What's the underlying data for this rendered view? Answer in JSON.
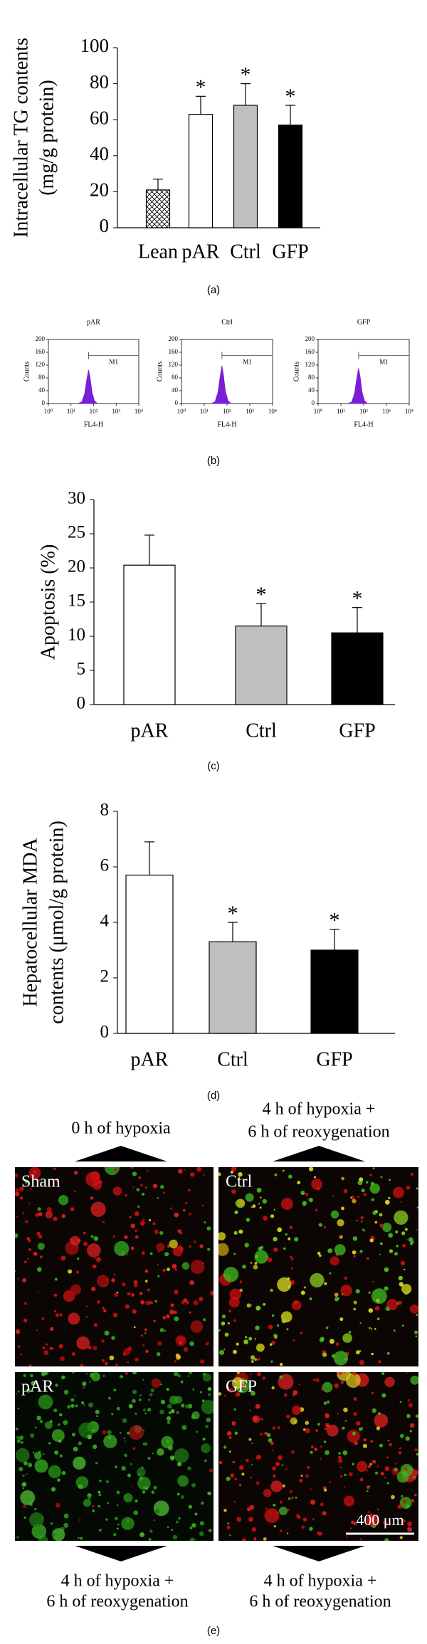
{
  "chart_data": [
    {
      "type": "bar",
      "ylabel": [
        "Intracellular TG contents",
        "(mg/g protein)"
      ],
      "categories": [
        "Lean",
        "pAR",
        "Ctrl",
        "GFP"
      ],
      "values": [
        21,
        63,
        68,
        57
      ],
      "errors": [
        6,
        10,
        12,
        11
      ],
      "colors": [
        "#ffffff",
        "#ffffff",
        "#bfbfbf",
        "#000000"
      ],
      "hatched": [
        true,
        false,
        false,
        false
      ],
      "annotations": [
        {
          "category_index": 1,
          "text": "*"
        },
        {
          "category_index": 2,
          "text": "*"
        },
        {
          "category_index": 3,
          "text": "*"
        }
      ],
      "ylim": [
        0,
        100
      ],
      "yticks": [
        0,
        20,
        40,
        60,
        80,
        100
      ],
      "caption": "(a)"
    },
    {
      "type": "flow",
      "title": "pAR",
      "xlabel": "FL4-H",
      "ylabel": "Counts",
      "color": "#7a1fd6",
      "log_x": true,
      "x": [
        20,
        30,
        40,
        50,
        60,
        70,
        85,
        110,
        150
      ],
      "values": [
        0,
        5,
        30,
        75,
        105,
        80,
        35,
        8,
        0
      ],
      "marker": {
        "label": "M1",
        "range": [
          60,
          10000
        ],
        "level": 150
      },
      "xlim": [
        1,
        10000
      ],
      "xticks": [
        {
          "value": 1,
          "label": "10⁰"
        },
        {
          "value": 10,
          "label": "10¹"
        },
        {
          "value": 100,
          "label": "10²"
        },
        {
          "value": 1000,
          "label": "10³"
        },
        {
          "value": 10000,
          "label": "10⁴"
        }
      ],
      "ylim": [
        0,
        200
      ],
      "yticks": [
        0,
        40,
        80,
        120,
        160,
        200
      ]
    },
    {
      "type": "flow",
      "title": "Ctrl",
      "xlabel": "FL4-H",
      "ylabel": "Counts",
      "color": "#7a1fd6",
      "log_x": true,
      "x": [
        20,
        30,
        40,
        50,
        60,
        70,
        85,
        110,
        150
      ],
      "values": [
        0,
        6,
        35,
        85,
        118,
        88,
        38,
        9,
        0
      ],
      "marker": {
        "label": "M1",
        "range": [
          60,
          10000
        ],
        "level": 150
      },
      "xlim": [
        1,
        10000
      ],
      "xticks": [
        {
          "value": 1,
          "label": "10⁰"
        },
        {
          "value": 10,
          "label": "10¹"
        },
        {
          "value": 100,
          "label": "10²"
        },
        {
          "value": 1000,
          "label": "10³"
        },
        {
          "value": 10000,
          "label": "10⁴"
        }
      ],
      "ylim": [
        0,
        200
      ],
      "yticks": [
        0,
        40,
        80,
        120,
        160,
        200
      ]
    },
    {
      "type": "flow",
      "title": "GFP",
      "xlabel": "FL4-H",
      "ylabel": "Counts",
      "color": "#7a1fd6",
      "log_x": true,
      "x": [
        20,
        30,
        40,
        50,
        60,
        70,
        85,
        110,
        150
      ],
      "values": [
        0,
        5,
        32,
        80,
        110,
        84,
        36,
        8,
        0
      ],
      "marker": {
        "label": "M1",
        "range": [
          60,
          10000
        ],
        "level": 150
      },
      "xlim": [
        1,
        10000
      ],
      "xticks": [
        {
          "value": 1,
          "label": "10⁰"
        },
        {
          "value": 10,
          "label": "10¹"
        },
        {
          "value": 100,
          "label": "10²"
        },
        {
          "value": 1000,
          "label": "10³"
        },
        {
          "value": 10000,
          "label": "10⁴"
        }
      ],
      "ylim": [
        0,
        200
      ],
      "yticks": [
        0,
        40,
        80,
        120,
        160,
        200
      ],
      "caption": "(b)"
    },
    {
      "type": "bar",
      "ylabel": [
        "Apoptosis (%)"
      ],
      "categories": [
        "pAR",
        "Ctrl",
        "GFP"
      ],
      "values": [
        20.4,
        11.5,
        10.5
      ],
      "errors": [
        4.4,
        3.3,
        3.7
      ],
      "colors": [
        "#ffffff",
        "#bfbfbf",
        "#000000"
      ],
      "hatched": [
        false,
        false,
        false
      ],
      "annotations": [
        {
          "category_index": 1,
          "text": "*"
        },
        {
          "category_index": 2,
          "text": "*"
        }
      ],
      "ylim": [
        0,
        30
      ],
      "yticks": [
        0,
        5,
        10,
        15,
        20,
        25,
        30
      ],
      "caption": "(c)"
    },
    {
      "type": "bar",
      "ylabel": [
        "Hepatocellular MDA",
        "contents (μmol/g protein)"
      ],
      "categories": [
        "pAR",
        "Ctrl",
        "GFP"
      ],
      "values": [
        5.7,
        3.3,
        3.0
      ],
      "errors": [
        1.2,
        0.7,
        0.75
      ],
      "colors": [
        "#ffffff",
        "#bfbfbf",
        "#000000"
      ],
      "hatched": [
        false,
        false,
        false
      ],
      "annotations": [
        {
          "category_index": 1,
          "text": "*"
        },
        {
          "category_index": 2,
          "text": "*"
        }
      ],
      "ylim": [
        0,
        8
      ],
      "yticks": [
        0,
        2,
        4,
        6,
        8
      ],
      "caption": "(d)"
    }
  ],
  "image_panel": {
    "top_labels": [
      [
        "0 h of hypoxia"
      ],
      [
        "4 h of hypoxia +",
        "6 h of reoxygenation"
      ]
    ],
    "images": [
      {
        "label": "Sham"
      },
      {
        "label": "Ctrl"
      },
      {
        "label": "pAR"
      },
      {
        "label": "GFP"
      }
    ],
    "scale_bar": "400 μm",
    "bottom_labels": [
      [
        "4 h of hypoxia +",
        "6 h of reoxygenation"
      ],
      [
        "4 h of hypoxia +",
        "6 h of reoxygenation"
      ]
    ],
    "caption": "(e)"
  }
}
